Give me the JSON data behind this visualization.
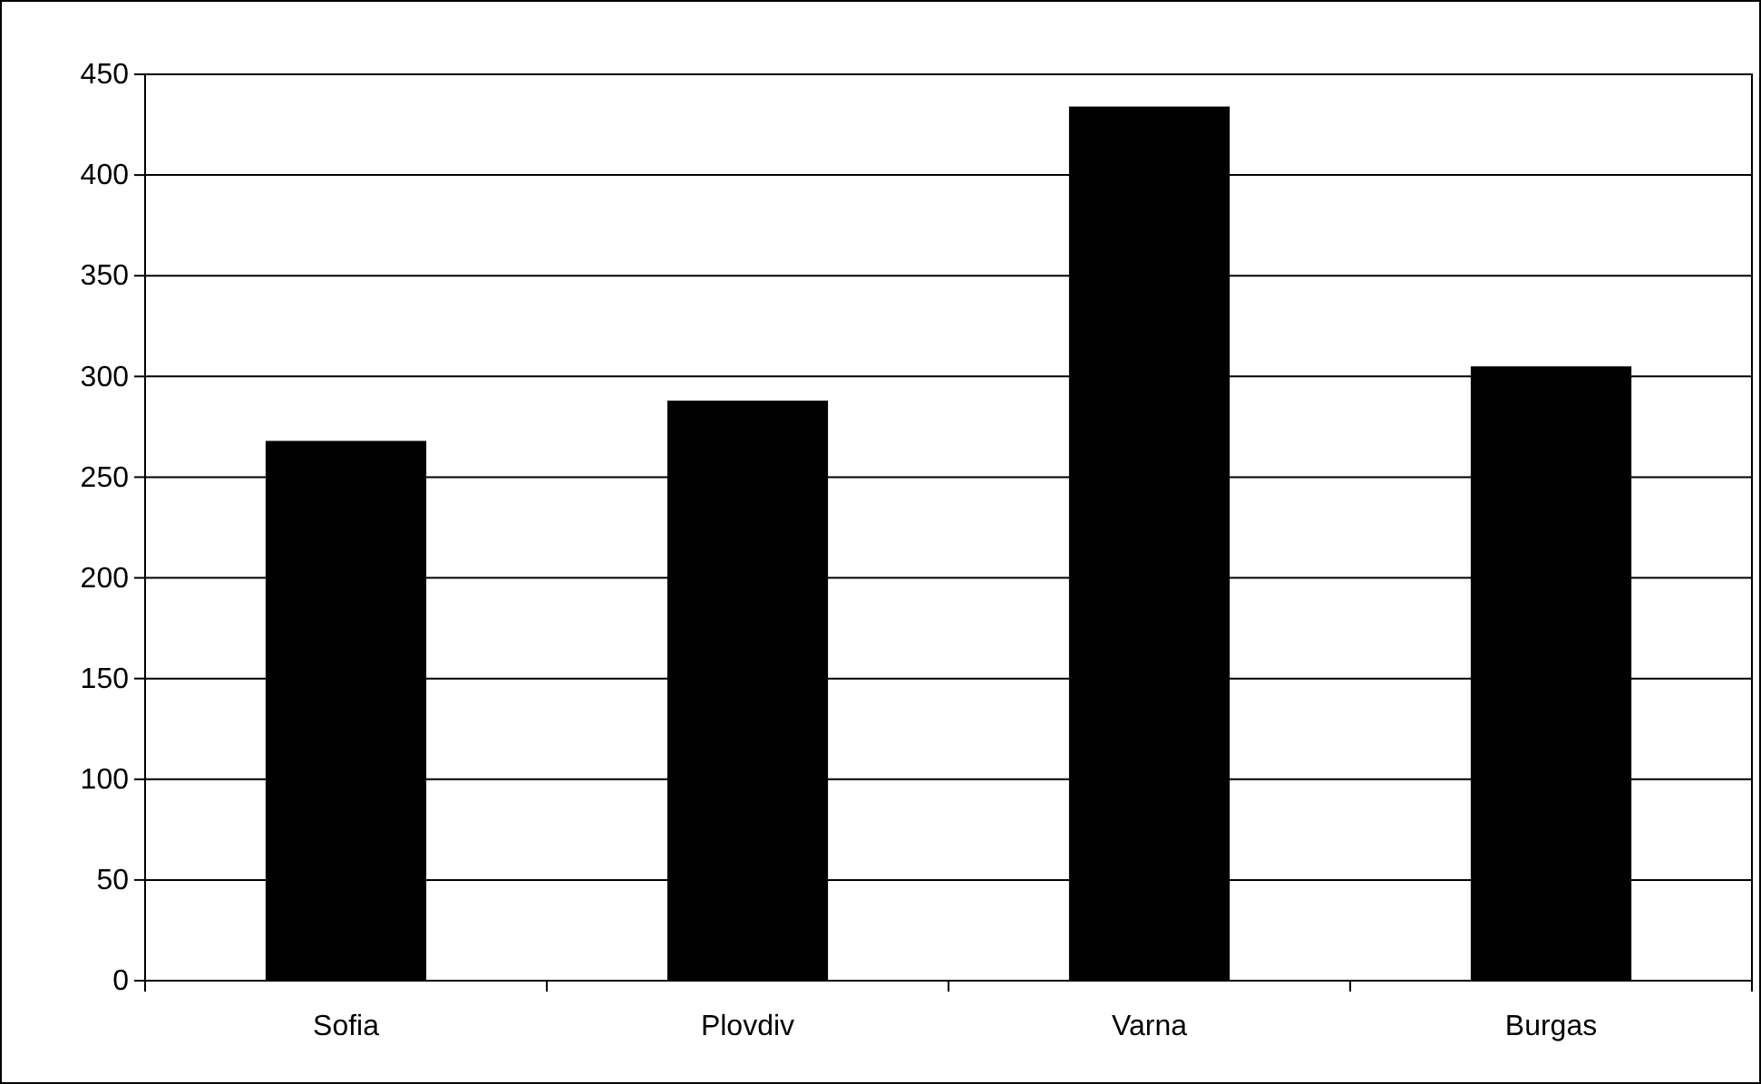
{
  "chart_data": {
    "type": "bar",
    "categories": [
      "Sofia",
      "Plovdiv",
      "Varna",
      "Burgas"
    ],
    "values": [
      268,
      288,
      434,
      305
    ],
    "color": "#000000",
    "ylim": [
      0,
      450
    ],
    "yticks": [
      0,
      50,
      100,
      150,
      200,
      250,
      300,
      350,
      400,
      450
    ],
    "grid": "y"
  }
}
